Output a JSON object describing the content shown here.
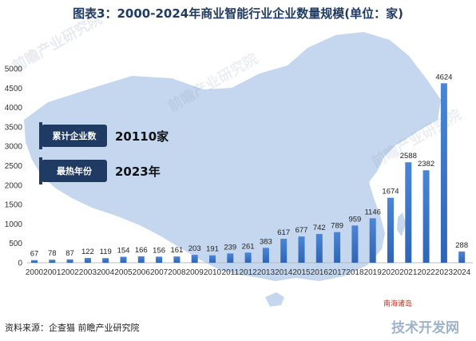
{
  "chart_data": {
    "type": "bar",
    "title": "图表3：2000-2024年商业智能行业企业数量规模(单位：家)",
    "categories": [
      "2000",
      "2001",
      "2002",
      "2003",
      "2004",
      "2005",
      "2006",
      "2007",
      "2008",
      "2009",
      "2010",
      "2011",
      "2012",
      "2013",
      "2014",
      "2015",
      "2016",
      "2017",
      "2018",
      "2019",
      "2020",
      "2021",
      "2022",
      "2023",
      "2024"
    ],
    "values": [
      67,
      78,
      87,
      122,
      119,
      154,
      166,
      156,
      161,
      203,
      191,
      239,
      261,
      383,
      617,
      677,
      742,
      789,
      959,
      1146,
      1674,
      2588,
      2382,
      4624,
      288
    ],
    "ylim": [
      0,
      5000
    ],
    "yticks": [
      0,
      500,
      1000,
      1500,
      2000,
      2500,
      3000,
      3500,
      4000,
      4500,
      5000
    ],
    "grid": false,
    "bar_color": "#3a73c8"
  },
  "badges": [
    {
      "label": "累计企业数",
      "value": "20110家"
    },
    {
      "label": "最热年份",
      "value": "2023年"
    }
  ],
  "map_label": "南海诸岛",
  "source": "资料来源：企查猫 前瞻产业研究院",
  "watermark": "技术开发网",
  "colors": {
    "map": "#c5d6ef",
    "bar_top": "#4a86d6",
    "bar_bottom": "#2f64b5",
    "badge_bg": "#1f3b63"
  }
}
